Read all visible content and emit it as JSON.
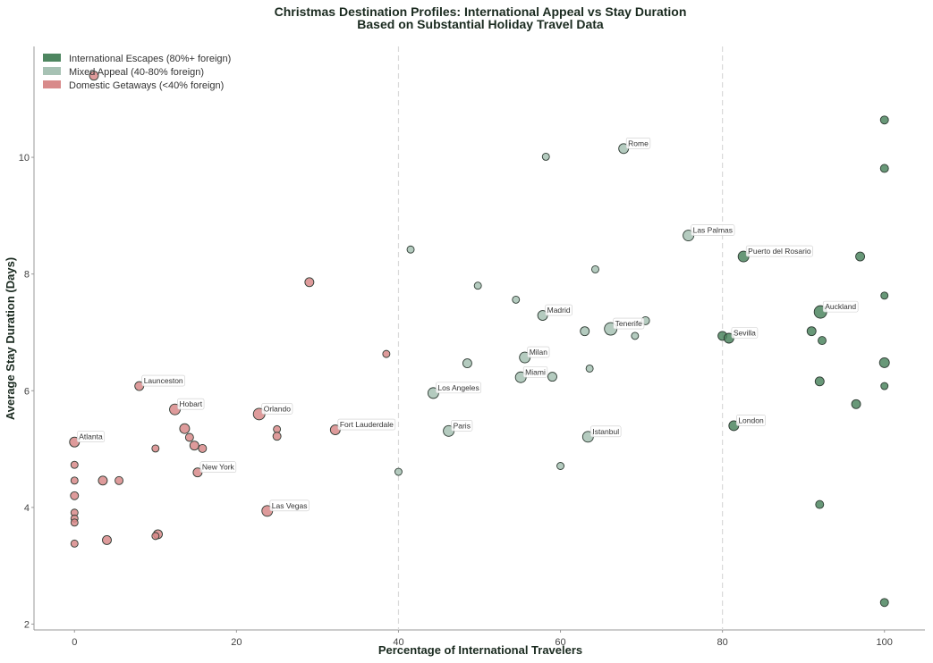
{
  "chart_data": {
    "type": "scatter",
    "title": "Christmas Destination Profiles: International Appeal vs Stay Duration",
    "subtitle": "Based on Substantial Holiday Travel Data",
    "xlabel": "Percentage of International Travelers",
    "ylabel": "Average Stay Duration (Days)",
    "xlim": [
      -5,
      105
    ],
    "ylim": [
      1.9,
      11.9
    ],
    "xticks": [
      0,
      20,
      40,
      60,
      80,
      100
    ],
    "yticks": [
      2,
      4,
      6,
      8,
      10
    ],
    "vlines": [
      40,
      80
    ],
    "grid": false,
    "legend_position": "top-left",
    "colors": {
      "international": "#4e8660",
      "mixed": "#a7c2b4",
      "domestic": "#d88a8a"
    },
    "legend": [
      {
        "key": "international",
        "label": "International Escapes (80%+ foreign)"
      },
      {
        "key": "mixed",
        "label": "Mixed Appeal (40-80% foreign)"
      },
      {
        "key": "domestic",
        "label": "Domestic Getaways (<40% foreign)"
      }
    ],
    "points": [
      {
        "x": 2.4,
        "y": 11.4,
        "cat": "domestic",
        "size": 5
      },
      {
        "x": 29,
        "y": 7.86,
        "cat": "domestic",
        "size": 5
      },
      {
        "x": 38.5,
        "y": 6.63,
        "cat": "domestic",
        "size": 4
      },
      {
        "x": 8,
        "y": 6.08,
        "cat": "domestic",
        "size": 5,
        "label": "Launceston"
      },
      {
        "x": 12.4,
        "y": 5.68,
        "cat": "domestic",
        "size": 6,
        "label": "Hobart"
      },
      {
        "x": 22.8,
        "y": 5.6,
        "cat": "domestic",
        "size": 6.5,
        "label": "Orlando"
      },
      {
        "x": 0,
        "y": 5.12,
        "cat": "domestic",
        "size": 5.5,
        "label": "Atlanta"
      },
      {
        "x": 32.2,
        "y": 5.33,
        "cat": "domestic",
        "size": 5.5,
        "label": "Fort Lauderdale"
      },
      {
        "x": 13.6,
        "y": 5.35,
        "cat": "domestic",
        "size": 5.5
      },
      {
        "x": 14.2,
        "y": 5.2,
        "cat": "domestic",
        "size": 4.5
      },
      {
        "x": 14.8,
        "y": 5.06,
        "cat": "domestic",
        "size": 5
      },
      {
        "x": 15.8,
        "y": 5.01,
        "cat": "domestic",
        "size": 4.5
      },
      {
        "x": 25,
        "y": 5.34,
        "cat": "domestic",
        "size": 4
      },
      {
        "x": 25,
        "y": 5.22,
        "cat": "domestic",
        "size": 4.5
      },
      {
        "x": 10,
        "y": 5.01,
        "cat": "domestic",
        "size": 4
      },
      {
        "x": 15.2,
        "y": 4.6,
        "cat": "domestic",
        "size": 5,
        "label": "New York"
      },
      {
        "x": 0,
        "y": 4.73,
        "cat": "domestic",
        "size": 4
      },
      {
        "x": 0,
        "y": 4.46,
        "cat": "domestic",
        "size": 4
      },
      {
        "x": 3.5,
        "y": 4.46,
        "cat": "domestic",
        "size": 5
      },
      {
        "x": 5.5,
        "y": 4.46,
        "cat": "domestic",
        "size": 4.5
      },
      {
        "x": 0,
        "y": 4.2,
        "cat": "domestic",
        "size": 4.5
      },
      {
        "x": 23.8,
        "y": 3.94,
        "cat": "domestic",
        "size": 6,
        "label": "Las Vegas"
      },
      {
        "x": 0,
        "y": 3.91,
        "cat": "domestic",
        "size": 4
      },
      {
        "x": 0,
        "y": 3.81,
        "cat": "domestic",
        "size": 4
      },
      {
        "x": 0,
        "y": 3.74,
        "cat": "domestic",
        "size": 4
      },
      {
        "x": 10.3,
        "y": 3.54,
        "cat": "domestic",
        "size": 5
      },
      {
        "x": 10,
        "y": 3.51,
        "cat": "domestic",
        "size": 4
      },
      {
        "x": 4,
        "y": 3.44,
        "cat": "domestic",
        "size": 5
      },
      {
        "x": 0,
        "y": 3.38,
        "cat": "domestic",
        "size": 4
      },
      {
        "x": 58.2,
        "y": 10.01,
        "cat": "mixed",
        "size": 4
      },
      {
        "x": 67.8,
        "y": 10.15,
        "cat": "mixed",
        "size": 5.5,
        "label": "Rome"
      },
      {
        "x": 41.5,
        "y": 8.42,
        "cat": "mixed",
        "size": 4
      },
      {
        "x": 75.8,
        "y": 8.66,
        "cat": "mixed",
        "size": 6,
        "label": "Las Palmas"
      },
      {
        "x": 64.3,
        "y": 8.08,
        "cat": "mixed",
        "size": 4
      },
      {
        "x": 49.8,
        "y": 7.8,
        "cat": "mixed",
        "size": 4
      },
      {
        "x": 54.5,
        "y": 7.56,
        "cat": "mixed",
        "size": 4
      },
      {
        "x": 57.8,
        "y": 7.29,
        "cat": "mixed",
        "size": 5.5,
        "label": "Madrid"
      },
      {
        "x": 70.5,
        "y": 7.2,
        "cat": "mixed",
        "size": 4.5
      },
      {
        "x": 66.2,
        "y": 7.06,
        "cat": "mixed",
        "size": 7,
        "label": "Tenerife"
      },
      {
        "x": 63,
        "y": 7.02,
        "cat": "mixed",
        "size": 5
      },
      {
        "x": 69.2,
        "y": 6.94,
        "cat": "mixed",
        "size": 4
      },
      {
        "x": 55.6,
        "y": 6.57,
        "cat": "mixed",
        "size": 6,
        "label": "Milan"
      },
      {
        "x": 48.5,
        "y": 6.47,
        "cat": "mixed",
        "size": 5
      },
      {
        "x": 63.6,
        "y": 6.38,
        "cat": "mixed",
        "size": 4
      },
      {
        "x": 55.1,
        "y": 6.23,
        "cat": "mixed",
        "size": 6,
        "label": "Miami"
      },
      {
        "x": 59,
        "y": 6.24,
        "cat": "mixed",
        "size": 5
      },
      {
        "x": 44.3,
        "y": 5.96,
        "cat": "mixed",
        "size": 6,
        "label": "Los Angeles"
      },
      {
        "x": 46.2,
        "y": 5.31,
        "cat": "mixed",
        "size": 6,
        "label": "Paris"
      },
      {
        "x": 63.4,
        "y": 5.21,
        "cat": "mixed",
        "size": 6,
        "label": "Istanbul"
      },
      {
        "x": 60,
        "y": 4.71,
        "cat": "mixed",
        "size": 4
      },
      {
        "x": 40,
        "y": 4.61,
        "cat": "mixed",
        "size": 4
      },
      {
        "x": 100,
        "y": 10.64,
        "cat": "international",
        "size": 4.5
      },
      {
        "x": 100,
        "y": 9.81,
        "cat": "international",
        "size": 4.5
      },
      {
        "x": 82.6,
        "y": 8.3,
        "cat": "international",
        "size": 6,
        "label": "Puerto del Rosario"
      },
      {
        "x": 97,
        "y": 8.3,
        "cat": "international",
        "size": 5
      },
      {
        "x": 100,
        "y": 7.63,
        "cat": "international",
        "size": 4
      },
      {
        "x": 92.1,
        "y": 7.35,
        "cat": "international",
        "size": 7,
        "label": "Auckland"
      },
      {
        "x": 91,
        "y": 7.02,
        "cat": "international",
        "size": 5
      },
      {
        "x": 80,
        "y": 6.94,
        "cat": "international",
        "size": 5
      },
      {
        "x": 80.8,
        "y": 6.9,
        "cat": "international",
        "size": 5.5,
        "label": "Sevilla"
      },
      {
        "x": 92.3,
        "y": 6.86,
        "cat": "international",
        "size": 4.5
      },
      {
        "x": 100,
        "y": 6.48,
        "cat": "international",
        "size": 5.5
      },
      {
        "x": 92,
        "y": 6.16,
        "cat": "international",
        "size": 5
      },
      {
        "x": 100,
        "y": 6.08,
        "cat": "international",
        "size": 4
      },
      {
        "x": 96.5,
        "y": 5.77,
        "cat": "international",
        "size": 5
      },
      {
        "x": 81.4,
        "y": 5.4,
        "cat": "international",
        "size": 5.5,
        "label": "London"
      },
      {
        "x": 92,
        "y": 4.05,
        "cat": "international",
        "size": 4.5
      },
      {
        "x": 100,
        "y": 2.37,
        "cat": "international",
        "size": 4.5
      }
    ]
  }
}
